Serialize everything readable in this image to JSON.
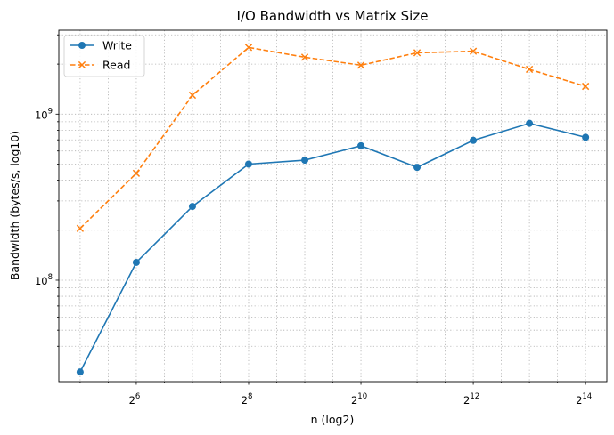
{
  "chart_data": {
    "type": "line",
    "title": "I/O Bandwidth vs Matrix Size",
    "xlabel": "n (log2)",
    "ylabel": "Bandwidth (bytes/s, log10)",
    "x_scale": "log2",
    "y_scale": "log10",
    "x": [
      32,
      64,
      128,
      256,
      512,
      1024,
      2048,
      4096,
      8192,
      16384
    ],
    "xlim": [
      24.6,
      21300
    ],
    "ylim": [
      24500000,
      3200000000
    ],
    "x_ticks": [
      {
        "value": 64,
        "base": "2",
        "exp": "6"
      },
      {
        "value": 256,
        "base": "2",
        "exp": "8"
      },
      {
        "value": 1024,
        "base": "2",
        "exp": "10"
      },
      {
        "value": 4096,
        "base": "2",
        "exp": "12"
      },
      {
        "value": 16384,
        "base": "2",
        "exp": "14"
      }
    ],
    "y_ticks": [
      {
        "value": 100000000,
        "base": "10",
        "exp": "8"
      },
      {
        "value": 1000000000,
        "base": "10",
        "exp": "9"
      }
    ],
    "grid": true,
    "legend_position": "top-left",
    "series": [
      {
        "name": "Write",
        "color": "#1f77b4",
        "marker": "circle",
        "linestyle": "solid",
        "values": [
          28000000,
          128000000,
          278000000,
          500000000,
          528000000,
          645000000,
          478000000,
          695000000,
          880000000,
          725000000
        ]
      },
      {
        "name": "Read",
        "color": "#ff7f0e",
        "marker": "x",
        "linestyle": "dashed",
        "values": [
          205000000,
          440000000,
          1300000000,
          2520000000,
          2200000000,
          1970000000,
          2340000000,
          2390000000,
          1860000000,
          1470000000
        ]
      }
    ]
  }
}
